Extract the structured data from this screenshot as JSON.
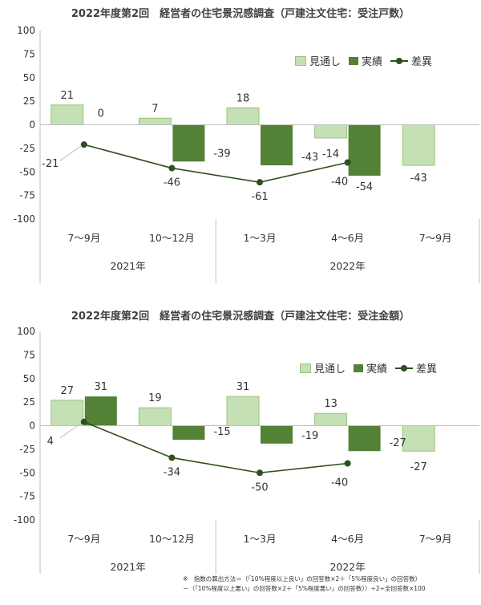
{
  "colors": {
    "forecast": "#c5e0b4",
    "forecast_border": "#9cc27d",
    "actual": "#538135",
    "diff": "#2f4f1e",
    "axis": "#bfbfbf",
    "text": "#333333"
  },
  "chart_data": [
    {
      "type": "bar",
      "title": "2022年度第2回　経営者の住宅景況感調査（戸建注文住宅：受注戸数）",
      "categories": [
        "7～9月",
        "10～12月",
        "1～3月",
        "4～6月",
        "7～9月"
      ],
      "groups": [
        {
          "label": "2021年",
          "span": [
            0,
            1
          ]
        },
        {
          "label": "2022年",
          "span": [
            2,
            4
          ]
        }
      ],
      "ylim": [
        -100,
        100
      ],
      "yticks": [
        100,
        75,
        50,
        25,
        0,
        -25,
        -50,
        -75,
        -100
      ],
      "legend_position": "top-right",
      "series": [
        {
          "name": "見通し",
          "kind": "bar",
          "values": [
            21,
            7,
            18,
            -14,
            -43
          ],
          "labels": [
            "21",
            "7",
            "18",
            "-14",
            "-43"
          ]
        },
        {
          "name": "実績",
          "kind": "bar",
          "values": [
            0,
            -39,
            -43,
            -54,
            null
          ],
          "labels": [
            "0",
            "-39",
            "-43",
            "-54",
            ""
          ]
        },
        {
          "name": "差異",
          "kind": "line",
          "values": [
            -21,
            -46,
            -61,
            -40,
            null
          ],
          "labels": [
            "-21",
            "-46",
            "-61",
            "-40",
            ""
          ]
        }
      ]
    },
    {
      "type": "bar",
      "title": "2022年度第2回　経営者の住宅景況感調査（戸建注文住宅：受注金額）",
      "categories": [
        "7～9月",
        "10～12月",
        "1～3月",
        "4～6月",
        "7～9月"
      ],
      "groups": [
        {
          "label": "2021年",
          "span": [
            0,
            1
          ]
        },
        {
          "label": "2022年",
          "span": [
            2,
            4
          ]
        }
      ],
      "ylim": [
        -100,
        100
      ],
      "yticks": [
        100,
        75,
        50,
        25,
        0,
        -25,
        -50,
        -75,
        -100
      ],
      "legend_position": "top-right",
      "series": [
        {
          "name": "見通し",
          "kind": "bar",
          "values": [
            27,
            19,
            31,
            13,
            -27
          ],
          "labels": [
            "27",
            "19",
            "31",
            "13",
            "-27"
          ]
        },
        {
          "name": "実績",
          "kind": "bar",
          "values": [
            31,
            -15,
            -19,
            -27,
            null
          ],
          "labels": [
            "31",
            "-15",
            "-19",
            "-27",
            ""
          ]
        },
        {
          "name": "差異",
          "kind": "line",
          "values": [
            4,
            -34,
            -50,
            -40,
            null
          ],
          "labels": [
            "4",
            "-34",
            "-50",
            "-40",
            ""
          ]
        }
      ]
    }
  ],
  "note": {
    "line1": "※　指数の算出方法＝（「10%程度以上良い」の回答数×2＋「5%程度良い」の回答数）",
    "line2": "－（「10%程度以上悪い」の回答数×2＋「5%程度悪い」の回答数））÷2÷全回答数×100"
  }
}
